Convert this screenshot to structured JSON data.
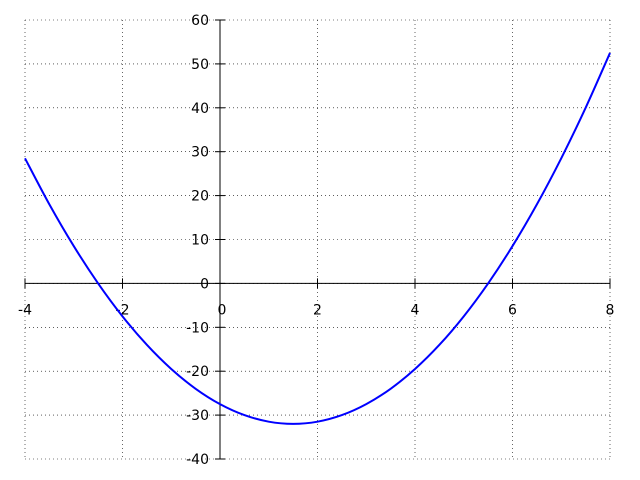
{
  "chart_data": {
    "type": "line",
    "title": "",
    "xlabel": "",
    "ylabel": "",
    "xlim": [
      -4,
      8
    ],
    "ylim": [
      -40,
      60
    ],
    "grid": true,
    "spines": "centered at origin",
    "x_ticks": [
      -4,
      -2,
      0,
      2,
      4,
      6,
      8
    ],
    "y_ticks": [
      -40,
      -30,
      -20,
      -10,
      0,
      10,
      20,
      30,
      40,
      50,
      60
    ],
    "x_tick_labels": [
      "-4",
      "-2",
      "0",
      "2",
      "4",
      "6",
      "8"
    ],
    "y_tick_labels": [
      "-40",
      "-30",
      "-20",
      "-10",
      "0",
      "10",
      "20",
      "30",
      "40",
      "50",
      "60"
    ],
    "series": [
      {
        "color": "#0000ff",
        "x": [
          -4,
          -3.5,
          -3,
          -2.5,
          -2,
          -1.5,
          -1,
          -0.5,
          0,
          0.5,
          1,
          1.5,
          2,
          2.5,
          3,
          3.5,
          4,
          4.5,
          5,
          5.5,
          6,
          6.5,
          7,
          7.5,
          8
        ],
        "y": [
          28.5,
          18,
          8.5,
          0,
          -7.5,
          -14,
          -19.5,
          -24,
          -27.5,
          -30,
          -31.5,
          -32,
          -31.5,
          -30,
          -27.5,
          -24,
          -19.5,
          -14,
          -7.5,
          0,
          8.5,
          18,
          28.5,
          40,
          52.5
        ]
      }
    ]
  }
}
